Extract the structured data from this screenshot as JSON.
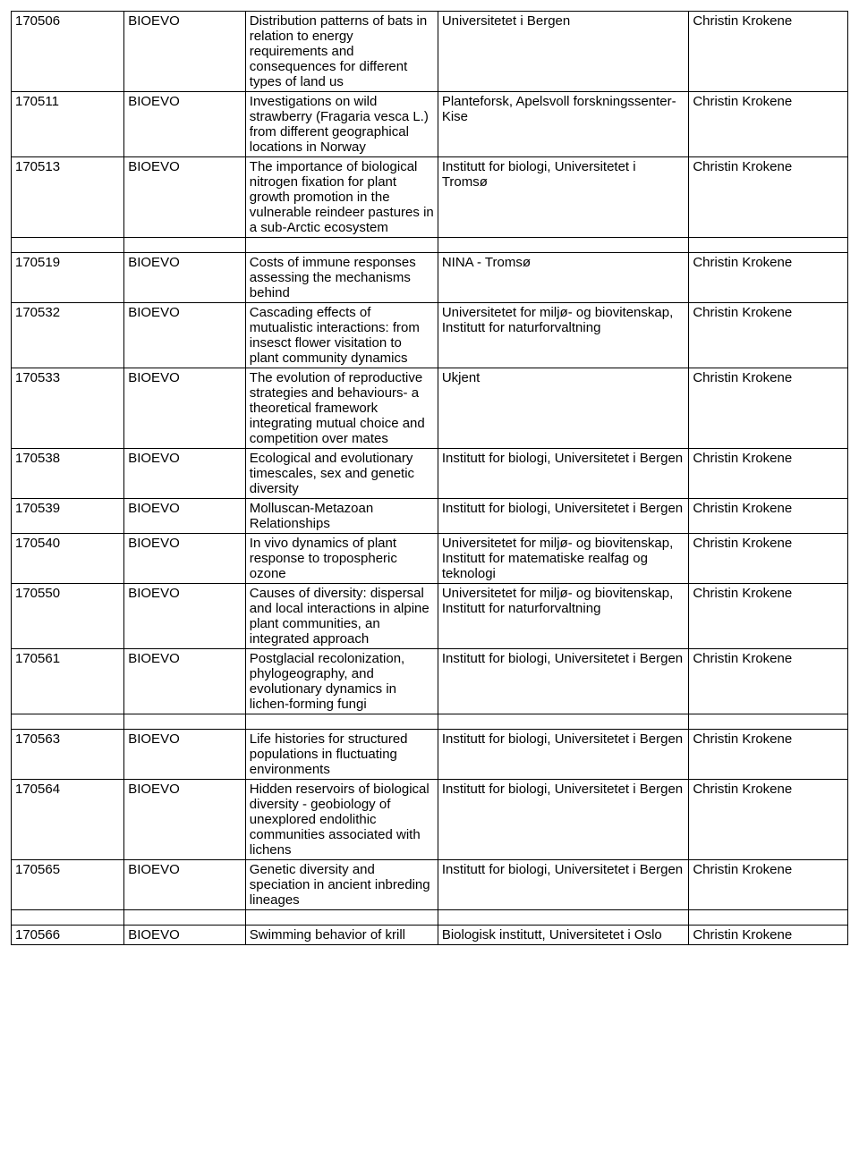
{
  "table": {
    "columns": [
      "id",
      "program",
      "title",
      "institution",
      "contact"
    ],
    "rows": [
      {
        "id": "170506",
        "program": "BIOEVO",
        "title": "Distribution patterns of bats in relation to energy requirements and consequences for different types of land us",
        "institution": "Universitetet i Bergen",
        "contact": "Christin Krokene",
        "gap_after": false
      },
      {
        "id": "170511",
        "program": "BIOEVO",
        "title": "Investigations on wild strawberry (Fragaria vesca L.) from different geographical locations in Norway",
        "institution": "Planteforsk, Apelsvoll forskningssenter-Kise",
        "contact": "Christin Krokene",
        "gap_after": false
      },
      {
        "id": "170513",
        "program": "BIOEVO",
        "title": "The importance of biological nitrogen fixation for plant growth promotion in the vulnerable reindeer pastures in a sub-Arctic ecosystem",
        "institution": "Institutt for biologi, Universitetet i Tromsø",
        "contact": "Christin Krokene",
        "gap_after": true
      },
      {
        "id": "170519",
        "program": "BIOEVO",
        "title": "Costs of immune responses  assessing the mechanisms behind",
        "institution": "NINA - Tromsø",
        "contact": "Christin Krokene",
        "gap_after": false
      },
      {
        "id": "170532",
        "program": "BIOEVO",
        "title": "Cascading effects of mutualistic interactions: from insesct flower visitation to plant community dynamics",
        "institution": "Universitetet for miljø- og biovitenskap, Institutt for naturforvaltning",
        "contact": "Christin Krokene",
        "gap_after": false
      },
      {
        "id": "170533",
        "program": "BIOEVO",
        "title": "The evolution of reproductive strategies and behaviours- a theoretical framework integrating mutual choice and competition over mates",
        "institution": "Ukjent",
        "contact": "Christin Krokene",
        "gap_after": false
      },
      {
        "id": "170538",
        "program": "BIOEVO",
        "title": "Ecological and evolutionary timescales, sex and genetic diversity",
        "institution": "Institutt for biologi, Universitetet i Bergen",
        "contact": "Christin Krokene",
        "gap_after": false
      },
      {
        "id": "170539",
        "program": "BIOEVO",
        "title": "Molluscan-Metazoan Relationships",
        "institution": "Institutt for biologi, Universitetet i Bergen",
        "contact": "Christin Krokene",
        "gap_after": false
      },
      {
        "id": "170540",
        "program": "BIOEVO",
        "title": "In vivo dynamics of plant response to tropospheric ozone",
        "institution": "Universitetet for miljø- og biovitenskap, Institutt for matematiske realfag og teknologi",
        "contact": "Christin Krokene",
        "gap_after": false
      },
      {
        "id": "170550",
        "program": "BIOEVO",
        "title": "Causes of diversity: dispersal and local interactions in alpine plant communities, an integrated approach",
        "institution": "Universitetet for miljø- og biovitenskap, Institutt for naturforvaltning",
        "contact": "Christin Krokene",
        "gap_after": false
      },
      {
        "id": "170561",
        "program": "BIOEVO",
        "title": "Postglacial recolonization, phylogeography, and evolutionary dynamics in lichen-forming fungi",
        "institution": "Institutt for biologi, Universitetet i Bergen",
        "contact": "Christin Krokene",
        "gap_after": true
      },
      {
        "id": "170563",
        "program": "BIOEVO",
        "title": "Life histories for structured populations in fluctuating environments",
        "institution": "Institutt for biologi, Universitetet i Bergen",
        "contact": "Christin Krokene",
        "gap_after": false
      },
      {
        "id": "170564",
        "program": "BIOEVO",
        "title": "Hidden reservoirs of biological diversity - geobiology of unexplored endolithic communities associated with lichens",
        "institution": "Institutt for biologi, Universitetet i Bergen",
        "contact": "Christin Krokene",
        "gap_after": false
      },
      {
        "id": "170565",
        "program": "BIOEVO",
        "title": "Genetic diversity and speciation in ancient inbreding lineages",
        "institution": "Institutt for biologi, Universitetet i Bergen",
        "contact": "Christin Krokene",
        "gap_after": true
      },
      {
        "id": "170566",
        "program": "BIOEVO",
        "title": "Swimming behavior of krill",
        "institution": "Biologisk institutt, Universitetet i Oslo",
        "contact": "Christin Krokene",
        "gap_after": false
      }
    ]
  }
}
